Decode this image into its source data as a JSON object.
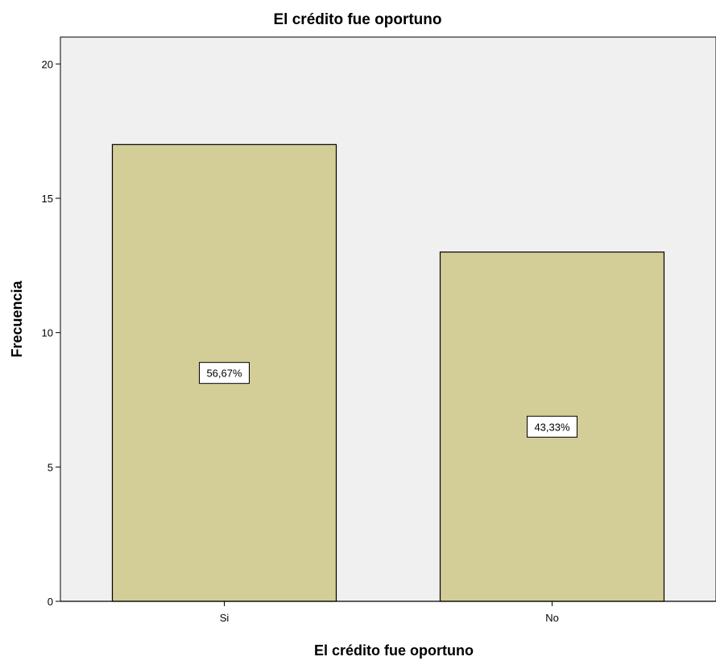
{
  "chart_data": {
    "type": "bar",
    "title": "El crédito fue oportuno",
    "xlabel": "El crédito fue oportuno",
    "ylabel": "Frecuencia",
    "categories": [
      "Si",
      "No"
    ],
    "values": [
      17,
      13
    ],
    "data_labels": [
      "56,67%",
      "43,33%"
    ],
    "ylim": [
      0,
      21
    ],
    "yticks": [
      0,
      5,
      10,
      15,
      20
    ],
    "grid": false,
    "legend": "none",
    "colors": {
      "plot_background": "#f0f0f0",
      "bar_fill": "#d3ce97",
      "bar_stroke": "#000000"
    }
  }
}
